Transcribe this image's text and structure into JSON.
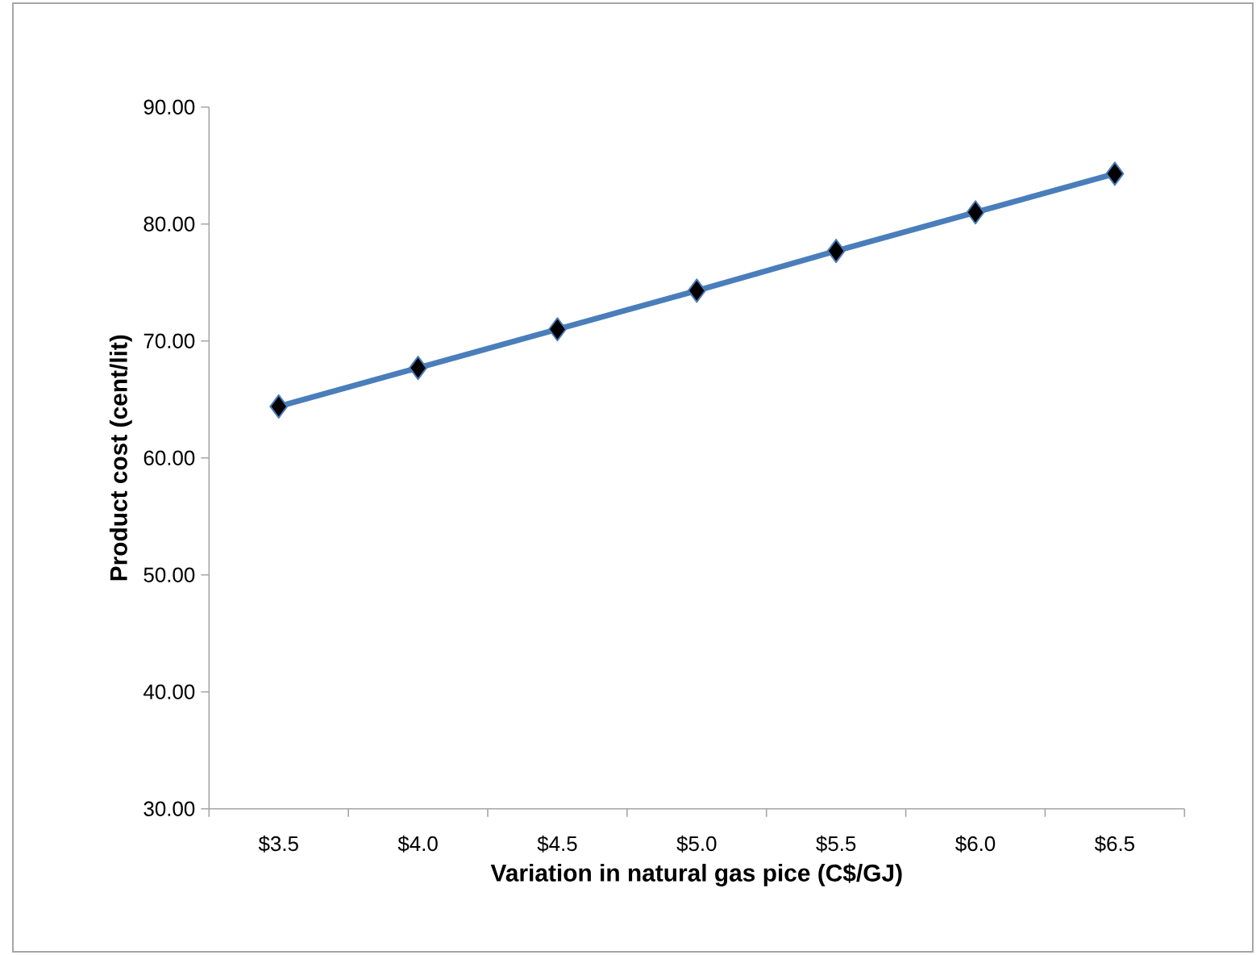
{
  "chart_data": {
    "type": "line",
    "xlabel": "Variation in natural gas pice (C$/GJ)",
    "ylabel": "Product cost (cent/lit)",
    "categories": [
      "$3.5",
      "$4.0",
      "$4.5",
      "$5.0",
      "$5.5",
      "$6.0",
      "$6.5"
    ],
    "series": [
      {
        "color": "#4a7ebb",
        "values": [
          64.4,
          67.7,
          71.0,
          74.3,
          77.7,
          81.0,
          84.3
        ]
      }
    ],
    "ylim": [
      30,
      90
    ],
    "yticks": [
      {
        "value": 30,
        "label": "30.00"
      },
      {
        "value": 40,
        "label": "40.00"
      },
      {
        "value": 50,
        "label": "50.00"
      },
      {
        "value": 60,
        "label": "60.00"
      },
      {
        "value": 70,
        "label": "70.00"
      },
      {
        "value": 80,
        "label": "80.00"
      },
      {
        "value": 90,
        "label": "90.00"
      }
    ],
    "marker": "diamond",
    "line_style": "solid",
    "grid": false,
    "legend": false
  }
}
